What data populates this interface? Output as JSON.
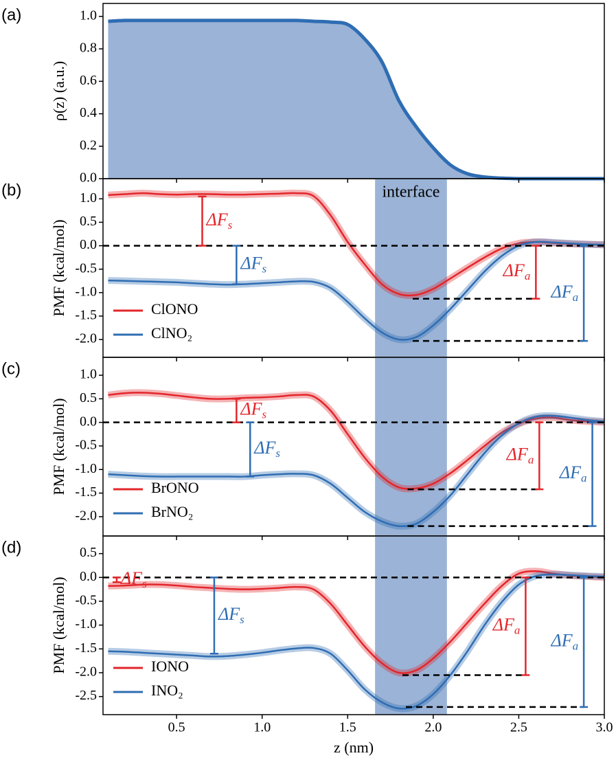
{
  "chart_data": [
    {
      "type": "area",
      "panel_label": "(a)",
      "y_label": "ρ(z) (a.u.)",
      "xlim": [
        0.07,
        3.0
      ],
      "ylim": [
        0,
        1.08
      ],
      "yticks": [
        {
          "value": 0,
          "label": "0.0"
        },
        0.2,
        0.4,
        0.6,
        0.8,
        {
          "value": 1,
          "label": "1.0"
        }
      ],
      "xticks": [
        0.5,
        {
          "value": 1,
          "label": "1.0"
        },
        1.5,
        {
          "value": 2,
          "label": "2.0"
        },
        2.5,
        {
          "value": 3,
          "label": "3.0"
        }
      ],
      "show_xtick_labels": false,
      "x": [
        0.1,
        0.2,
        0.3,
        0.4,
        0.5,
        0.6,
        0.7,
        0.8,
        0.9,
        1.0,
        1.1,
        1.2,
        1.3,
        1.4,
        1.5,
        1.6,
        1.7,
        1.8,
        1.9,
        2.0,
        2.1,
        2.2,
        2.3,
        2.4,
        2.5,
        2.6,
        2.7,
        2.8,
        2.9,
        3.0
      ],
      "series": [
        {
          "color": "#2f6db3",
          "fill": "#9ab3d6",
          "values": [
            0.97,
            0.975,
            0.975,
            0.975,
            0.975,
            0.975,
            0.975,
            0.975,
            0.975,
            0.975,
            0.975,
            0.975,
            0.97,
            0.965,
            0.95,
            0.86,
            0.72,
            0.48,
            0.32,
            0.19,
            0.085,
            0.03,
            0.01,
            0.003,
            0,
            0,
            0,
            0,
            0,
            0
          ]
        }
      ]
    },
    {
      "type": "line",
      "panel_label": "(b)",
      "y_label": "PMF (kcal/mol)",
      "xlim": [
        0.07,
        3.0
      ],
      "ylim": [
        -2.38,
        1.43
      ],
      "yticks": [
        {
          "value": -2,
          "label": "-2.0"
        },
        -1.5,
        {
          "value": -1,
          "label": "-1.0"
        },
        -0.5,
        {
          "value": 0,
          "label": "0.0"
        },
        0.5,
        {
          "value": 1,
          "label": "1.0"
        }
      ],
      "xticks": [
        0.5,
        {
          "value": 1,
          "label": "1.0"
        },
        1.5,
        {
          "value": 2,
          "label": "2.0"
        },
        2.5,
        {
          "value": 3,
          "label": "3.0"
        }
      ],
      "show_xtick_labels": false,
      "band": [
        1.66,
        2.08
      ],
      "band_color": "#9ab3d6",
      "band_label": "interface",
      "reference_line": 0,
      "legend": "lower left",
      "x": [
        0.1,
        0.2,
        0.3,
        0.4,
        0.5,
        0.6,
        0.7,
        0.8,
        0.9,
        1.0,
        1.1,
        1.2,
        1.3,
        1.4,
        1.5,
        1.6,
        1.7,
        1.8,
        1.9,
        2.0,
        2.1,
        2.2,
        2.3,
        2.4,
        2.5,
        2.6,
        2.7,
        2.8,
        2.9,
        3.0
      ],
      "series": [
        {
          "name": "ClONO",
          "color": "#e3262b",
          "values": [
            1.08,
            1.1,
            1.12,
            1.1,
            1.09,
            1.1,
            1.1,
            1.09,
            1.09,
            1.1,
            1.11,
            1.12,
            1.06,
            0.65,
            0.08,
            -0.4,
            -0.82,
            -1.03,
            -1.05,
            -0.92,
            -0.7,
            -0.47,
            -0.25,
            -0.06,
            0.05,
            0.08,
            0.06,
            0.04,
            0.03,
            0.02
          ]
        },
        {
          "name": "ClNO₂",
          "color": "#2f6db3",
          "values": [
            -0.74,
            -0.75,
            -0.76,
            -0.77,
            -0.78,
            -0.8,
            -0.82,
            -0.83,
            -0.82,
            -0.8,
            -0.78,
            -0.76,
            -0.77,
            -0.9,
            -1.2,
            -1.55,
            -1.85,
            -2.0,
            -1.95,
            -1.7,
            -1.35,
            -0.95,
            -0.55,
            -0.22,
            0.0,
            0.08,
            0.07,
            0.05,
            0.03,
            0.02
          ]
        }
      ],
      "delta_bars": [
        {
          "label": "ΔF",
          "sub": "s",
          "color": "#e3262b",
          "x": 0.65,
          "values": [
            0,
            1.05
          ]
        },
        {
          "label": "ΔF",
          "sub": "s",
          "color": "#2f6db3",
          "x": 0.85,
          "values": [
            0,
            -0.82
          ]
        },
        {
          "label": "ΔF",
          "sub": "a",
          "color": "#e3262b",
          "x": 2.6,
          "values": [
            0,
            -1.13
          ],
          "dash_from": 1.88
        },
        {
          "label": "ΔF",
          "sub": "a",
          "color": "#2f6db3",
          "x": 2.88,
          "values": [
            0,
            -2.03
          ],
          "dash_from": 1.88
        }
      ]
    },
    {
      "type": "line",
      "panel_label": "(c)",
      "y_label": "PMF (kcal/mol)",
      "xlim": [
        0.07,
        3.0
      ],
      "ylim": [
        -2.41,
        1.38
      ],
      "yticks": [
        {
          "value": -2,
          "label": "-2.0"
        },
        -1.5,
        {
          "value": -1,
          "label": "-1.0"
        },
        -0.5,
        {
          "value": 0,
          "label": "0.0"
        },
        0.5,
        {
          "value": 1,
          "label": "1.0"
        }
      ],
      "xticks": [
        0.5,
        {
          "value": 1,
          "label": "1.0"
        },
        1.5,
        {
          "value": 2,
          "label": "2.0"
        },
        2.5,
        {
          "value": 3,
          "label": "3.0"
        }
      ],
      "show_xtick_labels": false,
      "band": [
        1.66,
        2.08
      ],
      "band_color": "#9ab3d6",
      "reference_line": 0,
      "legend": "lower left",
      "x": [
        0.1,
        0.2,
        0.3,
        0.4,
        0.5,
        0.6,
        0.7,
        0.8,
        0.9,
        1.0,
        1.1,
        1.2,
        1.3,
        1.4,
        1.5,
        1.6,
        1.7,
        1.8,
        1.9,
        2.0,
        2.1,
        2.2,
        2.3,
        2.4,
        2.5,
        2.6,
        2.7,
        2.8,
        2.9,
        3.0
      ],
      "series": [
        {
          "name": "BrONO",
          "color": "#e3262b",
          "values": [
            0.58,
            0.62,
            0.63,
            0.61,
            0.57,
            0.53,
            0.5,
            0.5,
            0.52,
            0.53,
            0.55,
            0.58,
            0.55,
            0.25,
            -0.25,
            -0.75,
            -1.15,
            -1.38,
            -1.4,
            -1.3,
            -1.08,
            -0.8,
            -0.5,
            -0.22,
            -0.03,
            0.08,
            0.1,
            0.05,
            0.02,
            0.0
          ]
        },
        {
          "name": "BrNO₂",
          "color": "#2f6db3",
          "values": [
            -1.1,
            -1.12,
            -1.14,
            -1.15,
            -1.15,
            -1.15,
            -1.15,
            -1.15,
            -1.15,
            -1.12,
            -1.1,
            -1.09,
            -1.12,
            -1.3,
            -1.6,
            -1.9,
            -2.1,
            -2.2,
            -2.15,
            -1.9,
            -1.55,
            -1.1,
            -0.65,
            -0.28,
            -0.02,
            0.12,
            0.14,
            0.1,
            0.05,
            0.02
          ]
        }
      ],
      "delta_bars": [
        {
          "label": "ΔF",
          "sub": "s",
          "color": "#e3262b",
          "x": 0.85,
          "values": [
            0,
            0.5
          ]
        },
        {
          "label": "ΔF",
          "sub": "s",
          "color": "#2f6db3",
          "x": 0.93,
          "values": [
            0,
            -1.15
          ]
        },
        {
          "label": "ΔF",
          "sub": "a",
          "color": "#e3262b",
          "x": 2.62,
          "values": [
            0,
            -1.42
          ],
          "dash_from": 1.85
        },
        {
          "label": "ΔF",
          "sub": "a",
          "color": "#2f6db3",
          "x": 2.93,
          "values": [
            0,
            -2.2
          ],
          "dash_from": 1.85
        }
      ]
    },
    {
      "type": "line",
      "panel_label": "(d)",
      "y_label": "PMF (kcal/mol)",
      "x_label": "z (nm)",
      "xlim": [
        0.07,
        3.0
      ],
      "ylim": [
        -2.88,
        0.87
      ],
      "yticks": [
        -2.5,
        {
          "value": -2,
          "label": "-2.0"
        },
        -1.5,
        {
          "value": -1,
          "label": "-1.0"
        },
        -0.5,
        {
          "value": 0,
          "label": "0.0"
        },
        0.5
      ],
      "xticks": [
        0.5,
        {
          "value": 1,
          "label": "1.0"
        },
        1.5,
        {
          "value": 2,
          "label": "2.0"
        },
        2.5,
        {
          "value": 3,
          "label": "3.0"
        }
      ],
      "show_xtick_labels": true,
      "band": [
        1.66,
        2.08
      ],
      "band_color": "#9ab3d6",
      "reference_line": 0,
      "legend": "lower left",
      "x": [
        0.1,
        0.2,
        0.3,
        0.4,
        0.5,
        0.6,
        0.7,
        0.8,
        0.9,
        1.0,
        1.1,
        1.2,
        1.3,
        1.4,
        1.5,
        1.6,
        1.7,
        1.8,
        1.9,
        2.0,
        2.1,
        2.2,
        2.3,
        2.4,
        2.5,
        2.6,
        2.7,
        2.8,
        2.9,
        3.0
      ],
      "series": [
        {
          "name": "IONO",
          "color": "#e3262b",
          "values": [
            -0.18,
            -0.17,
            -0.15,
            -0.15,
            -0.17,
            -0.2,
            -0.22,
            -0.24,
            -0.25,
            -0.24,
            -0.22,
            -0.2,
            -0.25,
            -0.55,
            -1.0,
            -1.45,
            -1.8,
            -2.0,
            -1.95,
            -1.7,
            -1.35,
            -0.95,
            -0.55,
            -0.18,
            0.08,
            0.13,
            0.08,
            0.04,
            0.02,
            0.0
          ]
        },
        {
          "name": "INO₂",
          "color": "#2f6db3",
          "values": [
            -1.55,
            -1.56,
            -1.58,
            -1.6,
            -1.62,
            -1.64,
            -1.66,
            -1.65,
            -1.62,
            -1.58,
            -1.53,
            -1.49,
            -1.48,
            -1.6,
            -1.95,
            -2.35,
            -2.62,
            -2.75,
            -2.7,
            -2.45,
            -2.05,
            -1.55,
            -1.0,
            -0.52,
            -0.15,
            0.03,
            0.06,
            0.05,
            0.03,
            0.02
          ]
        }
      ],
      "delta_bars": [
        {
          "label": "ΔF",
          "sub": "s",
          "color": "#e3262b",
          "x": 0.15,
          "values": [
            0,
            -0.1
          ]
        },
        {
          "label": "ΔF",
          "sub": "s",
          "color": "#2f6db3",
          "x": 0.72,
          "values": [
            0,
            -1.6
          ]
        },
        {
          "label": "ΔF",
          "sub": "a",
          "color": "#e3262b",
          "x": 2.54,
          "values": [
            0,
            -2.05
          ],
          "dash_from": 1.82
        },
        {
          "label": "ΔF",
          "sub": "a",
          "color": "#2f6db3",
          "x": 2.88,
          "values": [
            0,
            -2.72
          ],
          "dash_from": 1.84
        }
      ]
    }
  ]
}
